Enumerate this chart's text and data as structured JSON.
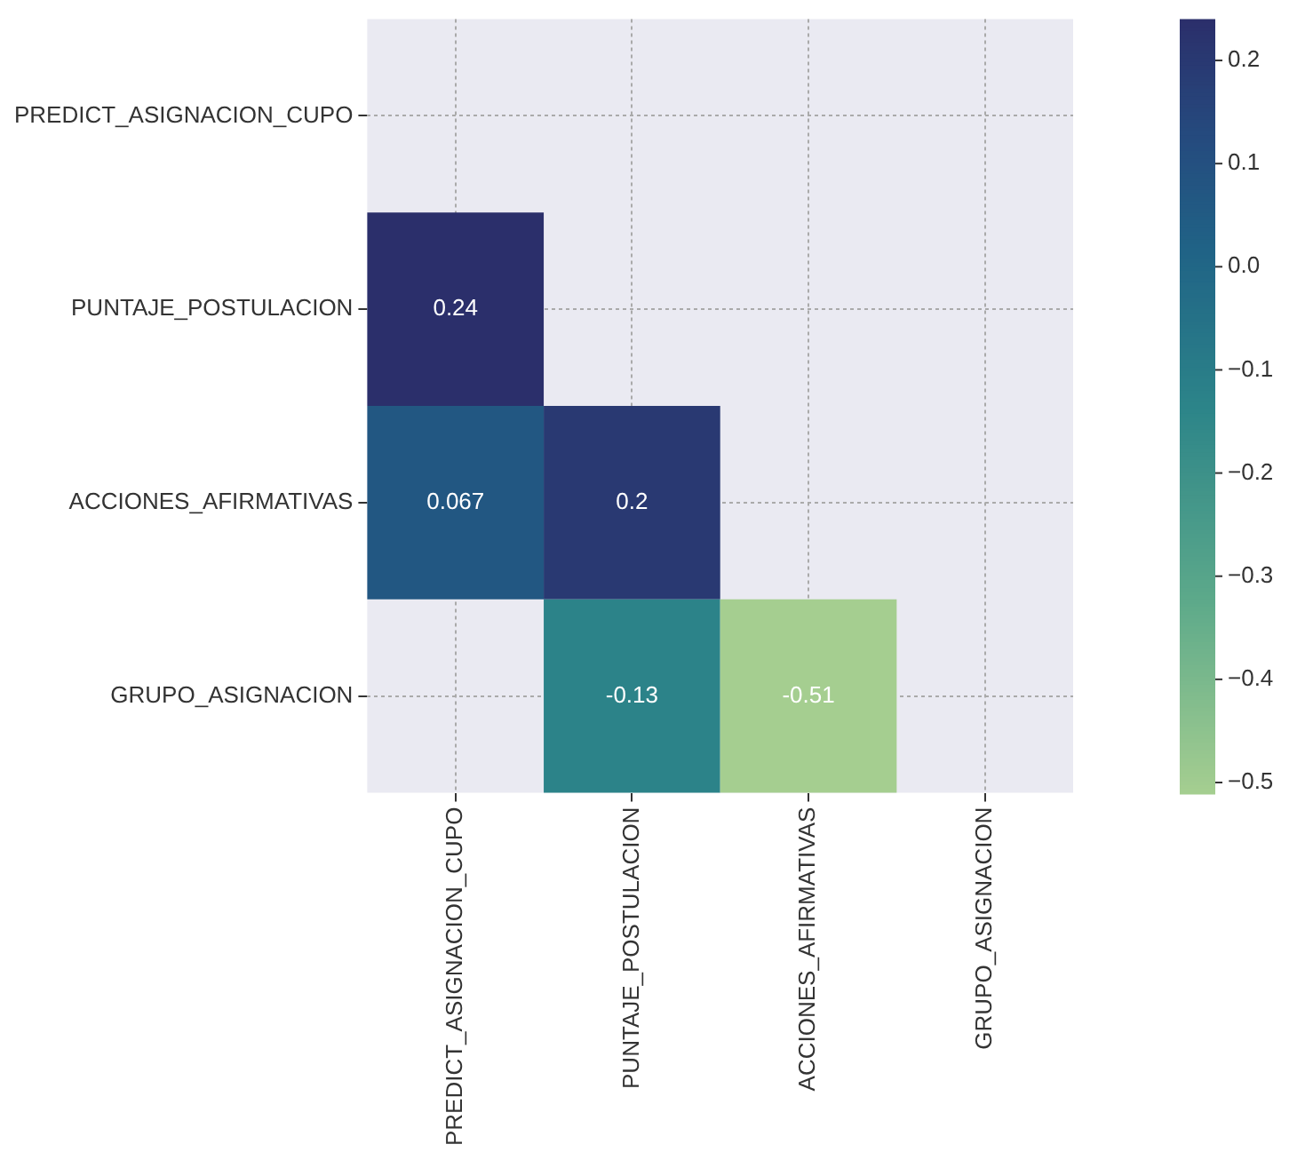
{
  "chart_data": {
    "type": "heatmap",
    "categories": [
      "PREDICT_ASIGNACION_CUPO",
      "PUNTAJE_POSTULACION",
      "ACCIONES_AFIRMATIVAS",
      "GRUPO_ASIGNACION"
    ],
    "y_categories": [
      "PREDICT_ASIGNACION_CUPO",
      "PUNTAJE_POSTULACION",
      "ACCIONES_AFIRMATIVAS",
      "GRUPO_ASIGNACION"
    ],
    "cells": [
      [
        null,
        null,
        null,
        null
      ],
      [
        0.24,
        null,
        null,
        null
      ],
      [
        0.067,
        0.2,
        null,
        null
      ],
      [
        null,
        -0.13,
        -0.51,
        null
      ]
    ],
    "data_labels": true,
    "clim": [
      -0.51,
      0.24
    ],
    "cticks": [
      {
        "value": 0.2,
        "label": "0.2"
      },
      {
        "value": 0.1,
        "label": "0.1"
      },
      {
        "value": 0,
        "label": "0.0"
      },
      {
        "value": -0.1,
        "label": "−0.1"
      },
      {
        "value": -0.2,
        "label": "−0.2"
      },
      {
        "value": -0.3,
        "label": "−0.3"
      },
      {
        "value": -0.4,
        "label": "−0.4"
      },
      {
        "value": -0.5,
        "label": "−0.5"
      }
    ],
    "grid": true
  }
}
